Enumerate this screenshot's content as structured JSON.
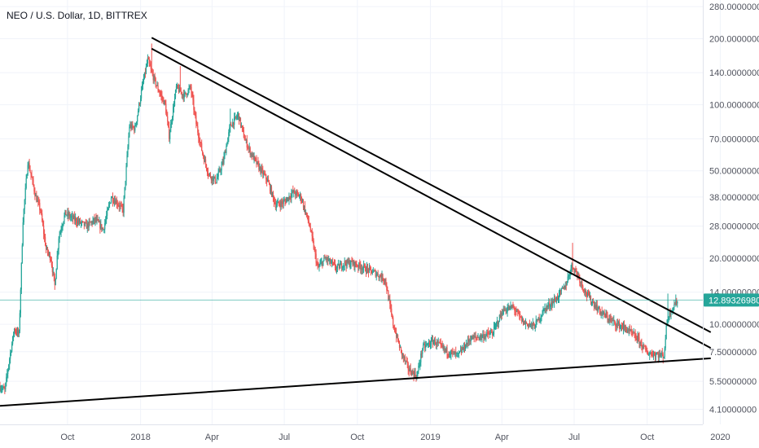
{
  "header": {
    "symbol_title": "NEO / U.S. Dollar, 1D, BITTREX"
  },
  "colors": {
    "up": "#26a69a",
    "down": "#ef5350",
    "trendline": "#000000",
    "price_line": "#26a69a",
    "grid": "#f0f3fa",
    "axis_text": "#50535e"
  },
  "chart_data": {
    "type": "candlestick",
    "title": "NEO / U.S. Dollar, 1D, BITTREX",
    "y_scale": "log",
    "ylim": [
      3.5,
      300
    ],
    "xlim": [
      "2017-07-08",
      "2019-12-10"
    ],
    "grid": true,
    "last_price": 12.8932698,
    "last_price_label": "12.89326980",
    "y_ticks": [
      {
        "value": 280,
        "label": "280.00000000"
      },
      {
        "value": 200,
        "label": "200.00000000"
      },
      {
        "value": 140,
        "label": "140.00000000"
      },
      {
        "value": 100,
        "label": "100.00000000"
      },
      {
        "value": 70,
        "label": "70.00000000"
      },
      {
        "value": 50,
        "label": "50.00000000"
      },
      {
        "value": 38,
        "label": "38.00000000"
      },
      {
        "value": 28,
        "label": "28.00000000"
      },
      {
        "value": 20,
        "label": "20.00000000"
      },
      {
        "value": 14,
        "label": "14.00000000"
      },
      {
        "value": 10,
        "label": "10.00000000"
      },
      {
        "value": 7.5,
        "label": "7.50000000"
      },
      {
        "value": 5.5,
        "label": "5.50000000"
      },
      {
        "value": 4.1,
        "label": "4.10000000"
      }
    ],
    "x_ticks": [
      {
        "date": "2017-10-01",
        "label": "Oct"
      },
      {
        "date": "2018-01-01",
        "label": "2018"
      },
      {
        "date": "2018-04-01",
        "label": "Apr"
      },
      {
        "date": "2018-07-01",
        "label": "Jul"
      },
      {
        "date": "2018-10-01",
        "label": "Oct"
      },
      {
        "date": "2019-01-01",
        "label": "2019"
      },
      {
        "date": "2019-04-01",
        "label": "Apr"
      },
      {
        "date": "2019-07-01",
        "label": "Jul"
      },
      {
        "date": "2019-10-01",
        "label": "Oct"
      },
      {
        "date": "2020-01-01",
        "label": "2020"
      }
    ],
    "price_path": [
      [
        "2017-07-08",
        5.2
      ],
      [
        "2017-07-14",
        5.0
      ],
      [
        "2017-07-20",
        7.0
      ],
      [
        "2017-07-26",
        9.5
      ],
      [
        "2017-08-01",
        9.0
      ],
      [
        "2017-08-06",
        30
      ],
      [
        "2017-08-12",
        55
      ],
      [
        "2017-08-16",
        48
      ],
      [
        "2017-08-22",
        38
      ],
      [
        "2017-08-28",
        33
      ],
      [
        "2017-09-04",
        22
      ],
      [
        "2017-09-10",
        20
      ],
      [
        "2017-09-15",
        15
      ],
      [
        "2017-09-20",
        25
      ],
      [
        "2017-09-28",
        32
      ],
      [
        "2017-10-10",
        30
      ],
      [
        "2017-10-25",
        28
      ],
      [
        "2017-11-05",
        30
      ],
      [
        "2017-11-15",
        27
      ],
      [
        "2017-11-25",
        38
      ],
      [
        "2017-12-02",
        36
      ],
      [
        "2017-12-10",
        33
      ],
      [
        "2017-12-18",
        80
      ],
      [
        "2017-12-25",
        78
      ],
      [
        "2018-01-03",
        120
      ],
      [
        "2018-01-10",
        160
      ],
      [
        "2018-01-15",
        140
      ],
      [
        "2018-01-22",
        120
      ],
      [
        "2018-02-01",
        100
      ],
      [
        "2018-02-06",
        72
      ],
      [
        "2018-02-15",
        120
      ],
      [
        "2018-02-25",
        110
      ],
      [
        "2018-03-05",
        120
      ],
      [
        "2018-03-12",
        82
      ],
      [
        "2018-03-20",
        60
      ],
      [
        "2018-03-28",
        48
      ],
      [
        "2018-04-06",
        45
      ],
      [
        "2018-04-15",
        55
      ],
      [
        "2018-04-24",
        80
      ],
      [
        "2018-05-04",
        90
      ],
      [
        "2018-05-12",
        70
      ],
      [
        "2018-05-20",
        60
      ],
      [
        "2018-05-30",
        52
      ],
      [
        "2018-06-10",
        45
      ],
      [
        "2018-06-20",
        35
      ],
      [
        "2018-07-01",
        36
      ],
      [
        "2018-07-12",
        40
      ],
      [
        "2018-07-22",
        38
      ],
      [
        "2018-08-02",
        28
      ],
      [
        "2018-08-12",
        18
      ],
      [
        "2018-08-22",
        20
      ],
      [
        "2018-09-05",
        18
      ],
      [
        "2018-09-15",
        19
      ],
      [
        "2018-09-25",
        19
      ],
      [
        "2018-10-10",
        18
      ],
      [
        "2018-10-25",
        17
      ],
      [
        "2018-11-05",
        16
      ],
      [
        "2018-11-15",
        10
      ],
      [
        "2018-11-25",
        7.5
      ],
      [
        "2018-12-05",
        6.2
      ],
      [
        "2018-12-15",
        5.8
      ],
      [
        "2018-12-22",
        7.8
      ],
      [
        "2019-01-05",
        8.4
      ],
      [
        "2019-01-20",
        7.6
      ],
      [
        "2019-02-05",
        7.2
      ],
      [
        "2019-02-20",
        8.6
      ],
      [
        "2019-03-05",
        8.8
      ],
      [
        "2019-03-20",
        9.1
      ],
      [
        "2019-04-02",
        11.5
      ],
      [
        "2019-04-15",
        12.0
      ],
      [
        "2019-04-28",
        10.2
      ],
      [
        "2019-05-12",
        9.8
      ],
      [
        "2019-05-25",
        11.8
      ],
      [
        "2019-06-08",
        13.0
      ],
      [
        "2019-06-20",
        15.0
      ],
      [
        "2019-06-28",
        18.5
      ],
      [
        "2019-07-05",
        17.0
      ],
      [
        "2019-07-15",
        14.0
      ],
      [
        "2019-07-25",
        12.5
      ],
      [
        "2019-08-05",
        11.2
      ],
      [
        "2019-08-20",
        10.2
      ],
      [
        "2019-09-05",
        9.5
      ],
      [
        "2019-09-20",
        8.5
      ],
      [
        "2019-10-01",
        7.4
      ],
      [
        "2019-10-12",
        7.3
      ],
      [
        "2019-10-22",
        7.2
      ],
      [
        "2019-10-26",
        10.5
      ],
      [
        "2019-11-01",
        11.8
      ],
      [
        "2019-11-08",
        12.89
      ]
    ],
    "spike_highs": [
      [
        "2018-01-15",
        190
      ],
      [
        "2018-02-20",
        150
      ],
      [
        "2018-04-24",
        96
      ],
      [
        "2019-06-29",
        23.5
      ],
      [
        "2019-10-27",
        13.8
      ]
    ],
    "trendlines": [
      {
        "p1": [
          "2018-01-15",
          202
        ],
        "p2": [
          "2019-12-20",
          9.2
        ]
      },
      {
        "p1": [
          "2018-01-15",
          180
        ],
        "p2": [
          "2019-12-20",
          7.8
        ]
      },
      {
        "p1": [
          "2017-07-08",
          4.25
        ],
        "p2": [
          "2019-12-20",
          7.0
        ]
      }
    ]
  }
}
